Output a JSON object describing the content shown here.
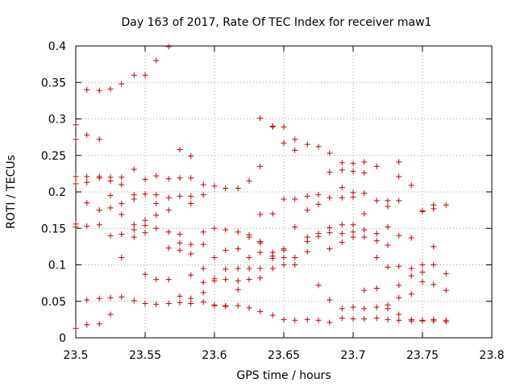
{
  "chart_data": {
    "type": "scatter",
    "title": "Day 163 of 2017, Rate Of TEC Index for receiver maw1",
    "xlabel": "GPS time / hours",
    "ylabel": "ROTI / TECUs",
    "xlim": [
      23.5,
      23.8
    ],
    "ylim": [
      0,
      0.4
    ],
    "xticks": [
      23.5,
      23.55,
      23.6,
      23.65,
      23.7,
      23.75,
      23.8
    ],
    "xtick_labels": [
      "23.5",
      "23.55",
      "23.6",
      "23.65",
      "23.7",
      "23.75",
      "23.8"
    ],
    "yticks": [
      0,
      0.05,
      0.1,
      0.15,
      0.2,
      0.25,
      0.3,
      0.35,
      0.4
    ],
    "ytick_labels": [
      "0",
      "0.05",
      "0.1",
      "0.15",
      "0.2",
      "0.25",
      "0.3",
      "0.35",
      "0.4"
    ],
    "grid": true,
    "marker": "+",
    "series": [
      {
        "name": "maw1",
        "color": "#cc0000",
        "points": [
          [
            23.5,
            0.292
          ],
          [
            23.5,
            0.272
          ],
          [
            23.5,
            0.221
          ],
          [
            23.5,
            0.211
          ],
          [
            23.5,
            0.156
          ],
          [
            23.5,
            0.152
          ],
          [
            23.5,
            0.013
          ],
          [
            23.508,
            0.34
          ],
          [
            23.508,
            0.278
          ],
          [
            23.508,
            0.221
          ],
          [
            23.508,
            0.213
          ],
          [
            23.508,
            0.185
          ],
          [
            23.508,
            0.153
          ],
          [
            23.508,
            0.052
          ],
          [
            23.508,
            0.018
          ],
          [
            23.517,
            0.339
          ],
          [
            23.517,
            0.272
          ],
          [
            23.517,
            0.221
          ],
          [
            23.517,
            0.219
          ],
          [
            23.517,
            0.175
          ],
          [
            23.517,
            0.155
          ],
          [
            23.517,
            0.054
          ],
          [
            23.517,
            0.019
          ],
          [
            23.525,
            0.341
          ],
          [
            23.525,
            0.22
          ],
          [
            23.525,
            0.215
          ],
          [
            23.525,
            0.195
          ],
          [
            23.525,
            0.178
          ],
          [
            23.525,
            0.14
          ],
          [
            23.525,
            0.055
          ],
          [
            23.525,
            0.032
          ],
          [
            23.533,
            0.348
          ],
          [
            23.533,
            0.22
          ],
          [
            23.533,
            0.21
          ],
          [
            23.533,
            0.184
          ],
          [
            23.533,
            0.169
          ],
          [
            23.533,
            0.142
          ],
          [
            23.533,
            0.11
          ],
          [
            23.533,
            0.056
          ],
          [
            23.542,
            0.36
          ],
          [
            23.542,
            0.231
          ],
          [
            23.542,
            0.196
          ],
          [
            23.542,
            0.19
          ],
          [
            23.542,
            0.155
          ],
          [
            23.542,
            0.148
          ],
          [
            23.542,
            0.138
          ],
          [
            23.542,
            0.051
          ],
          [
            23.55,
            0.36
          ],
          [
            23.55,
            0.217
          ],
          [
            23.55,
            0.197
          ],
          [
            23.55,
            0.161
          ],
          [
            23.55,
            0.154
          ],
          [
            23.55,
            0.144
          ],
          [
            23.55,
            0.087
          ],
          [
            23.55,
            0.047
          ],
          [
            23.558,
            0.38
          ],
          [
            23.558,
            0.222
          ],
          [
            23.558,
            0.196
          ],
          [
            23.558,
            0.184
          ],
          [
            23.558,
            0.168
          ],
          [
            23.558,
            0.15
          ],
          [
            23.558,
            0.08
          ],
          [
            23.558,
            0.046
          ],
          [
            23.567,
            0.399
          ],
          [
            23.567,
            0.218
          ],
          [
            23.567,
            0.192
          ],
          [
            23.567,
            0.175
          ],
          [
            23.567,
            0.145
          ],
          [
            23.567,
            0.123
          ],
          [
            23.567,
            0.08
          ],
          [
            23.567,
            0.047
          ],
          [
            23.575,
            0.258
          ],
          [
            23.575,
            0.219
          ],
          [
            23.575,
            0.194
          ],
          [
            23.575,
            0.142
          ],
          [
            23.575,
            0.13
          ],
          [
            23.575,
            0.12
          ],
          [
            23.575,
            0.057
          ],
          [
            23.575,
            0.048
          ],
          [
            23.583,
            0.249
          ],
          [
            23.583,
            0.219
          ],
          [
            23.583,
            0.194
          ],
          [
            23.583,
            0.184
          ],
          [
            23.583,
            0.128
          ],
          [
            23.583,
            0.115
          ],
          [
            23.583,
            0.086
          ],
          [
            23.583,
            0.054
          ],
          [
            23.583,
            0.047
          ],
          [
            23.592,
            0.21
          ],
          [
            23.592,
            0.196
          ],
          [
            23.592,
            0.145
          ],
          [
            23.592,
            0.128
          ],
          [
            23.592,
            0.095
          ],
          [
            23.592,
            0.076
          ],
          [
            23.592,
            0.062
          ],
          [
            23.592,
            0.049
          ],
          [
            23.6,
            0.208
          ],
          [
            23.6,
            0.15
          ],
          [
            23.6,
            0.11
          ],
          [
            23.6,
            0.081
          ],
          [
            23.6,
            0.078
          ],
          [
            23.6,
            0.045
          ],
          [
            23.6,
            0.044
          ],
          [
            23.608,
            0.205
          ],
          [
            23.608,
            0.148
          ],
          [
            23.608,
            0.12
          ],
          [
            23.608,
            0.094
          ],
          [
            23.608,
            0.08
          ],
          [
            23.608,
            0.044
          ],
          [
            23.608,
            0.043
          ],
          [
            23.617,
            0.205
          ],
          [
            23.617,
            0.145
          ],
          [
            23.617,
            0.122
          ],
          [
            23.617,
            0.095
          ],
          [
            23.617,
            0.078
          ],
          [
            23.617,
            0.066
          ],
          [
            23.617,
            0.044
          ],
          [
            23.625,
            0.215
          ],
          [
            23.625,
            0.141
          ],
          [
            23.625,
            0.138
          ],
          [
            23.625,
            0.11
          ],
          [
            23.625,
            0.095
          ],
          [
            23.625,
            0.08
          ],
          [
            23.625,
            0.041
          ],
          [
            23.633,
            0.301
          ],
          [
            23.633,
            0.235
          ],
          [
            23.633,
            0.169
          ],
          [
            23.633,
            0.132
          ],
          [
            23.633,
            0.13
          ],
          [
            23.633,
            0.117
          ],
          [
            23.633,
            0.095
          ],
          [
            23.633,
            0.082
          ],
          [
            23.633,
            0.036
          ],
          [
            23.642,
            0.29
          ],
          [
            23.642,
            0.289
          ],
          [
            23.642,
            0.17
          ],
          [
            23.642,
            0.117
          ],
          [
            23.642,
            0.112
          ],
          [
            23.642,
            0.109
          ],
          [
            23.642,
            0.095
          ],
          [
            23.642,
            0.031
          ],
          [
            23.65,
            0.289
          ],
          [
            23.65,
            0.267
          ],
          [
            23.65,
            0.19
          ],
          [
            23.65,
            0.122
          ],
          [
            23.65,
            0.12
          ],
          [
            23.65,
            0.11
          ],
          [
            23.65,
            0.1
          ],
          [
            23.65,
            0.025
          ],
          [
            23.658,
            0.272
          ],
          [
            23.658,
            0.257
          ],
          [
            23.658,
            0.19
          ],
          [
            23.658,
            0.152
          ],
          [
            23.658,
            0.11
          ],
          [
            23.658,
            0.1
          ],
          [
            23.658,
            0.024
          ],
          [
            23.667,
            0.265
          ],
          [
            23.667,
            0.194
          ],
          [
            23.667,
            0.175
          ],
          [
            23.667,
            0.138
          ],
          [
            23.667,
            0.132
          ],
          [
            23.667,
            0.118
          ],
          [
            23.667,
            0.025
          ],
          [
            23.675,
            0.262
          ],
          [
            23.675,
            0.196
          ],
          [
            23.675,
            0.183
          ],
          [
            23.675,
            0.143
          ],
          [
            23.675,
            0.139
          ],
          [
            23.675,
            0.072
          ],
          [
            23.675,
            0.024
          ],
          [
            23.683,
            0.253
          ],
          [
            23.683,
            0.227
          ],
          [
            23.683,
            0.192
          ],
          [
            23.683,
            0.151
          ],
          [
            23.683,
            0.144
          ],
          [
            23.683,
            0.122
          ],
          [
            23.683,
            0.052
          ],
          [
            23.683,
            0.021
          ],
          [
            23.692,
            0.24
          ],
          [
            23.692,
            0.23
          ],
          [
            23.692,
            0.206
          ],
          [
            23.692,
            0.192
          ],
          [
            23.692,
            0.155
          ],
          [
            23.692,
            0.143
          ],
          [
            23.692,
            0.131
          ],
          [
            23.692,
            0.04
          ],
          [
            23.692,
            0.027
          ],
          [
            23.7,
            0.239
          ],
          [
            23.7,
            0.228
          ],
          [
            23.7,
            0.199
          ],
          [
            23.7,
            0.193
          ],
          [
            23.7,
            0.155
          ],
          [
            23.7,
            0.145
          ],
          [
            23.7,
            0.138
          ],
          [
            23.7,
            0.042
          ],
          [
            23.7,
            0.026
          ],
          [
            23.708,
            0.241
          ],
          [
            23.708,
            0.226
          ],
          [
            23.708,
            0.198
          ],
          [
            23.708,
            0.17
          ],
          [
            23.708,
            0.148
          ],
          [
            23.708,
            0.138
          ],
          [
            23.708,
            0.065
          ],
          [
            23.708,
            0.04
          ],
          [
            23.708,
            0.026
          ],
          [
            23.717,
            0.235
          ],
          [
            23.717,
            0.188
          ],
          [
            23.717,
            0.143
          ],
          [
            23.717,
            0.133
          ],
          [
            23.717,
            0.11
          ],
          [
            23.717,
            0.068
          ],
          [
            23.717,
            0.042
          ],
          [
            23.717,
            0.027
          ],
          [
            23.725,
            0.188
          ],
          [
            23.725,
            0.18
          ],
          [
            23.725,
            0.152
          ],
          [
            23.725,
            0.127
          ],
          [
            23.725,
            0.097
          ],
          [
            23.725,
            0.045
          ],
          [
            23.725,
            0.04
          ],
          [
            23.725,
            0.025
          ],
          [
            23.733,
            0.241
          ],
          [
            23.733,
            0.221
          ],
          [
            23.733,
            0.188
          ],
          [
            23.733,
            0.14
          ],
          [
            23.733,
            0.098
          ],
          [
            23.733,
            0.072
          ],
          [
            23.733,
            0.055
          ],
          [
            23.733,
            0.032
          ],
          [
            23.733,
            0.024
          ],
          [
            23.742,
            0.209
          ],
          [
            23.742,
            0.137
          ],
          [
            23.742,
            0.095
          ],
          [
            23.742,
            0.085
          ],
          [
            23.742,
            0.06
          ],
          [
            23.742,
            0.025
          ],
          [
            23.742,
            0.023
          ],
          [
            23.75,
            0.174
          ],
          [
            23.75,
            0.173
          ],
          [
            23.75,
            0.1
          ],
          [
            23.75,
            0.09
          ],
          [
            23.75,
            0.077
          ],
          [
            23.75,
            0.024
          ],
          [
            23.75,
            0.023
          ],
          [
            23.758,
            0.182
          ],
          [
            23.758,
            0.177
          ],
          [
            23.758,
            0.125
          ],
          [
            23.758,
            0.1
          ],
          [
            23.758,
            0.073
          ],
          [
            23.758,
            0.025
          ],
          [
            23.758,
            0.023
          ],
          [
            23.767,
            0.182
          ],
          [
            23.767,
            0.088
          ],
          [
            23.767,
            0.065
          ],
          [
            23.767,
            0.024
          ],
          [
            23.767,
            0.022
          ]
        ]
      }
    ]
  }
}
